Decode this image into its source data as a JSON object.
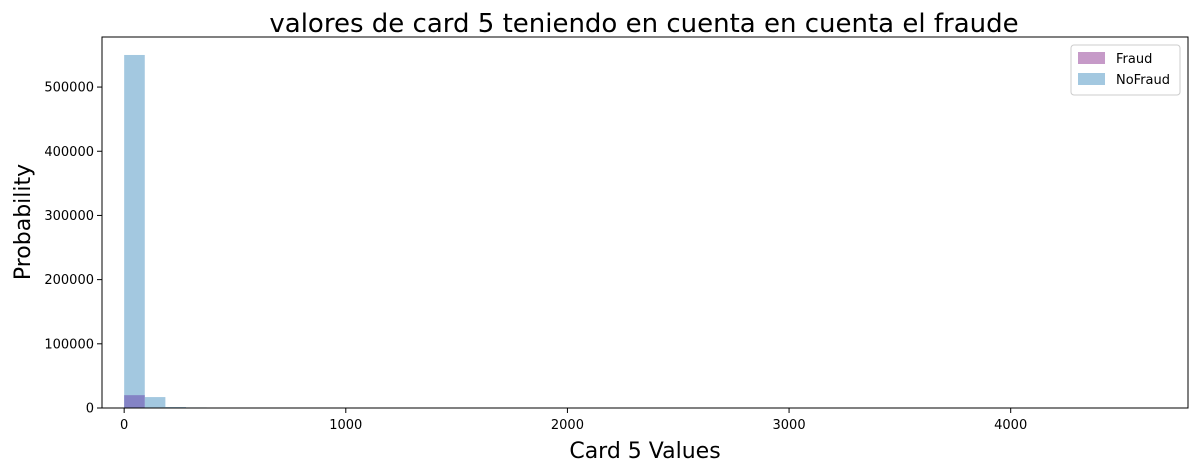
{
  "chart_data": {
    "type": "bar",
    "title": "valores de card 5 teniendo en cuenta en cuenta el fraude",
    "xlabel": "Card 5 Values",
    "ylabel": "Probability",
    "xlim": [
      -100,
      4800
    ],
    "ylim": [
      0,
      578000
    ],
    "x_ticks": [
      0,
      1000,
      2000,
      3000,
      4000
    ],
    "y_ticks": [
      0,
      100000,
      200000,
      300000,
      400000,
      500000
    ],
    "bin_width": 93,
    "legend_position": "top-right",
    "series": [
      {
        "name": "Fraud",
        "color": "#c69ac8",
        "bins": [
          {
            "x0": 0,
            "x1": 93,
            "value": 20000
          },
          {
            "x0": 93,
            "x1": 186,
            "value": 600
          }
        ]
      },
      {
        "name": "NoFraud",
        "color": "#a3c8e0",
        "bins": [
          {
            "x0": 0,
            "x1": 93,
            "value": 550000
          },
          {
            "x0": 93,
            "x1": 186,
            "value": 17000
          },
          {
            "x0": 186,
            "x1": 279,
            "value": 1500
          },
          {
            "x0": 279,
            "x1": 372,
            "value": 900
          }
        ]
      }
    ]
  }
}
